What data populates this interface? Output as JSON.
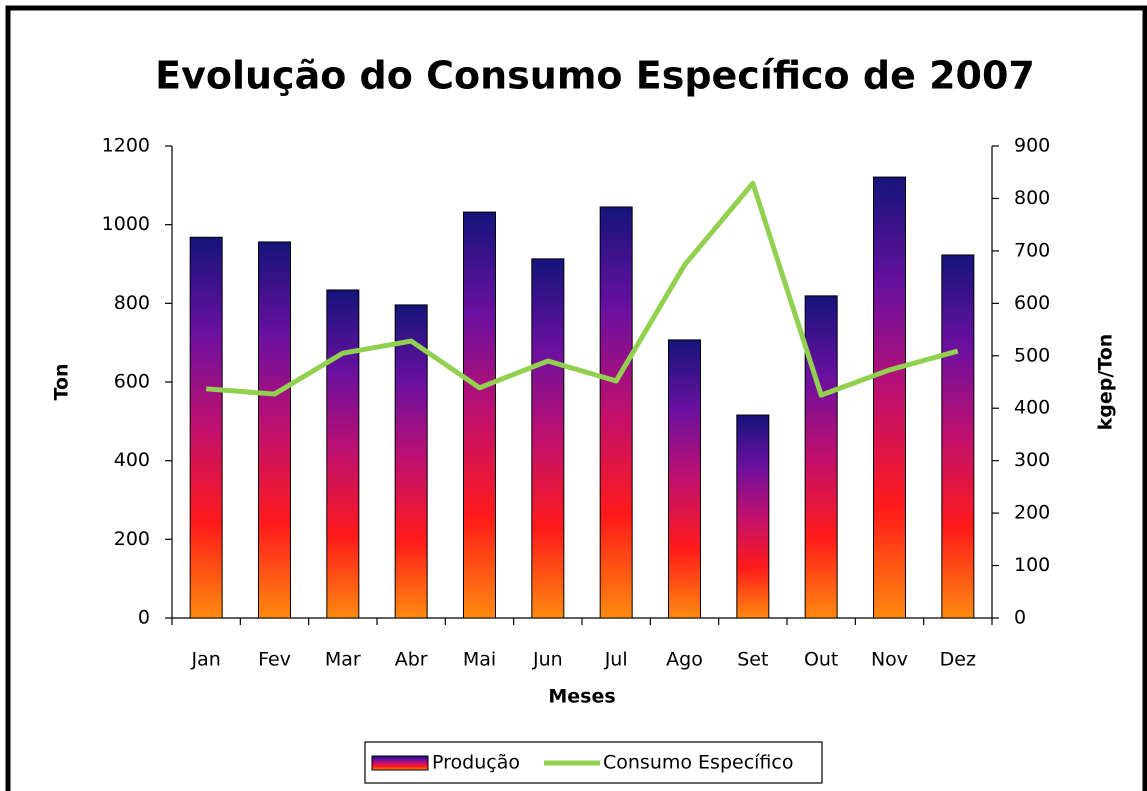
{
  "chart_data": {
    "type": "bar",
    "title": "Evolução do Consumo Específico de 2007",
    "x_label": "Meses",
    "y_label": "Ton",
    "y2_label": "kgep/Ton",
    "categories": [
      "Jan",
      "Fev",
      "Mar",
      "Abr",
      "Mai",
      "Jun",
      "Jul",
      "Ago",
      "Set",
      "Out",
      "Nov",
      "Dez"
    ],
    "series": [
      {
        "name": "Produção",
        "type": "bar",
        "colors": [
          "#14147a",
          "#6a10a0",
          "#c0106e",
          "#ff1a1a",
          "#ff8a10"
        ],
        "values": [
          968,
          956,
          834,
          796,
          1032,
          913,
          1045,
          707,
          516,
          819,
          1121,
          923
        ]
      },
      {
        "name": "Consumo Específico",
        "type": "line",
        "axis": "y2",
        "color": "#92d050",
        "values": [
          437,
          427,
          505,
          528,
          439,
          490,
          452,
          673,
          829,
          425,
          473,
          509
        ]
      }
    ],
    "ylim": [
      0,
      1200
    ],
    "yticks": [
      0,
      200,
      400,
      600,
      800,
      1000,
      1200
    ],
    "y2lim": [
      0,
      900
    ],
    "y2ticks": [
      0,
      100,
      200,
      300,
      400,
      500,
      600,
      700,
      800,
      900
    ],
    "legend": "bottom"
  }
}
